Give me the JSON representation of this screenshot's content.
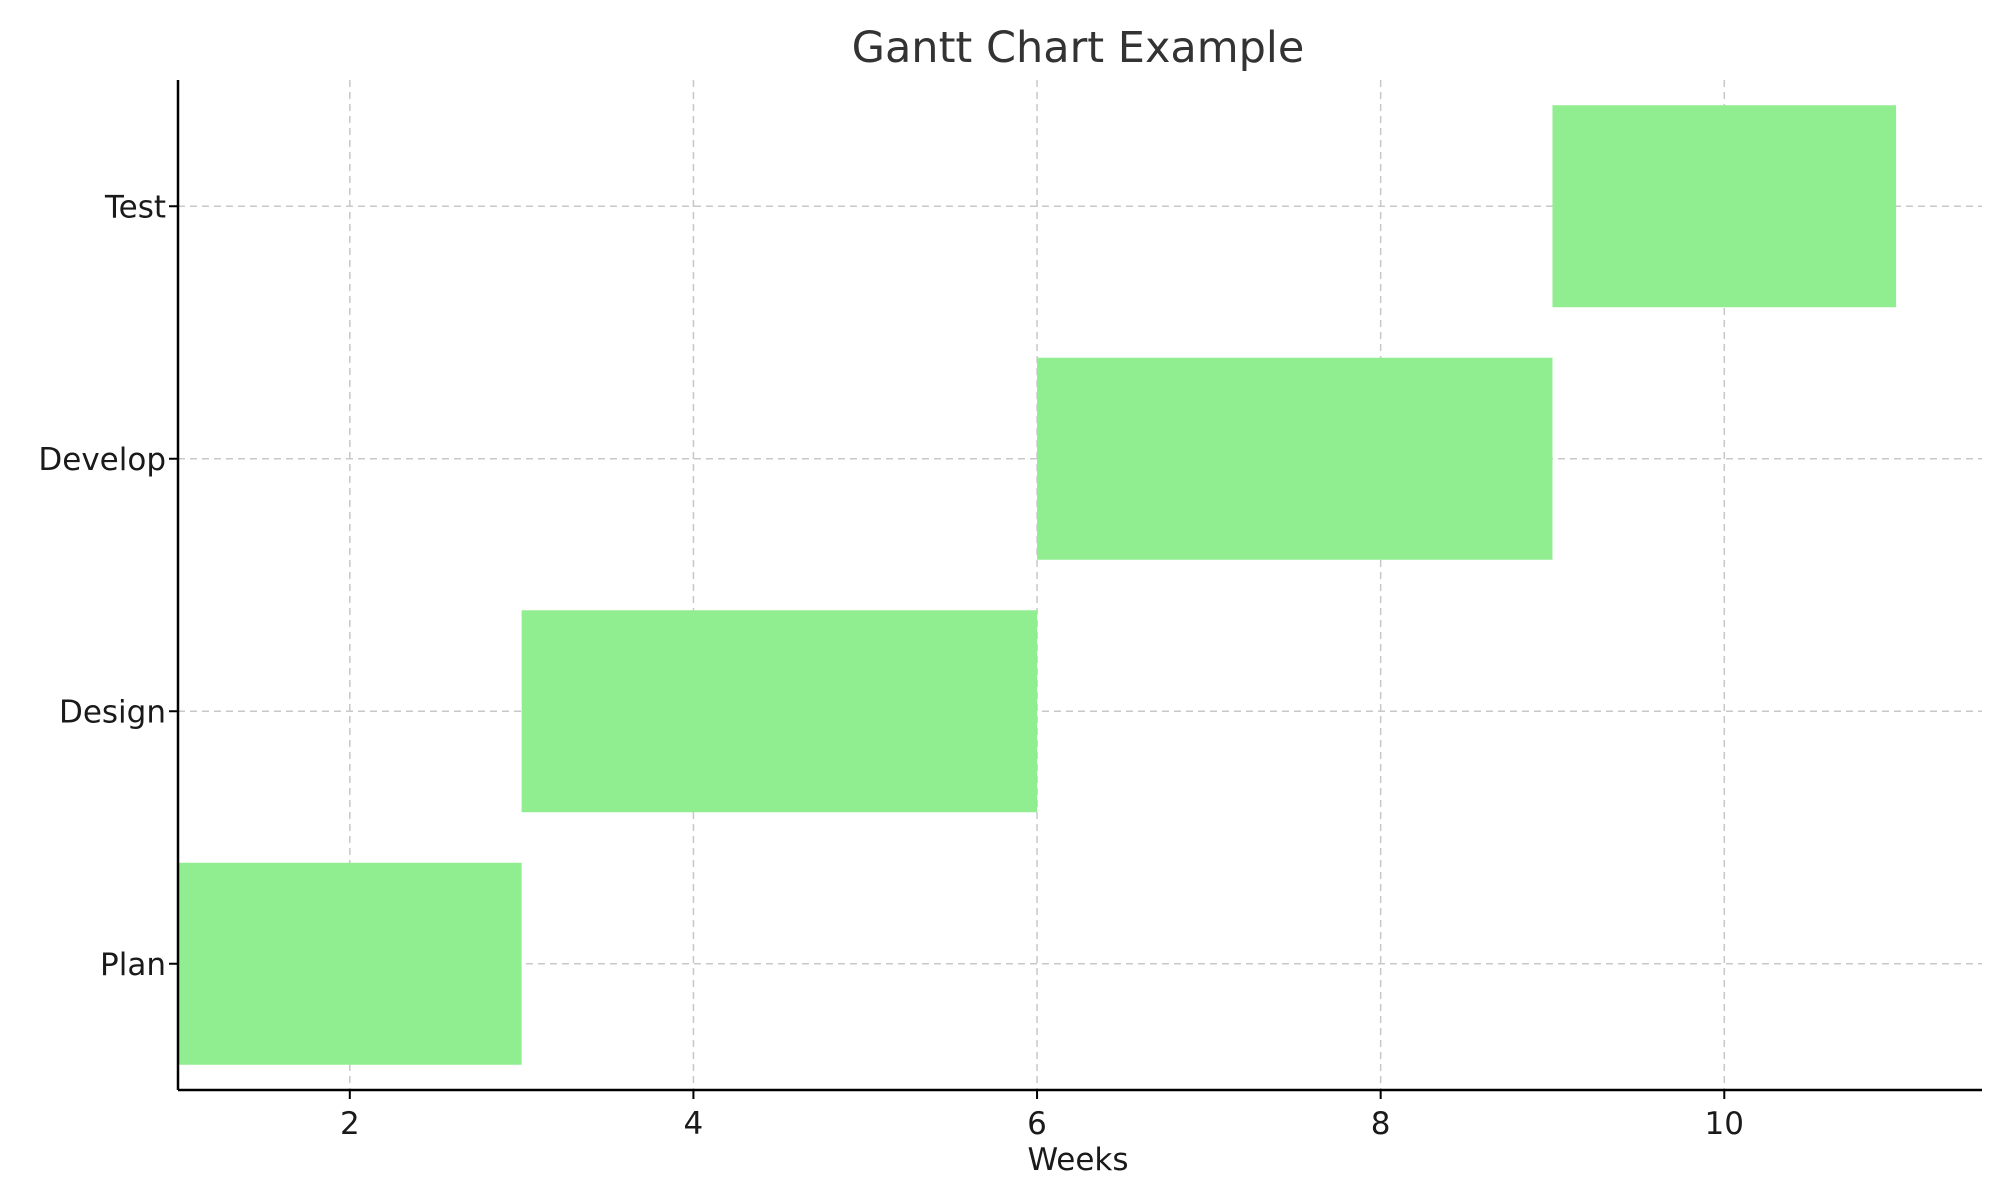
{
  "chart_data": {
    "type": "bar",
    "orientation": "horizontal",
    "title": "Gantt Chart Example",
    "xlabel": "Weeks",
    "ylabel": "",
    "categories": [
      "Plan",
      "Design",
      "Develop",
      "Test"
    ],
    "tasks": [
      {
        "task": "Plan",
        "start": 1,
        "end": 3
      },
      {
        "task": "Design",
        "start": 3,
        "end": 6
      },
      {
        "task": "Develop",
        "start": 6,
        "end": 9
      },
      {
        "task": "Test",
        "start": 9,
        "end": 11
      }
    ],
    "xlim": [
      1,
      11.5
    ],
    "xticks": [
      2,
      4,
      6,
      8,
      10
    ],
    "grid": true,
    "bar_color": "#90EE90",
    "legend": "none"
  }
}
